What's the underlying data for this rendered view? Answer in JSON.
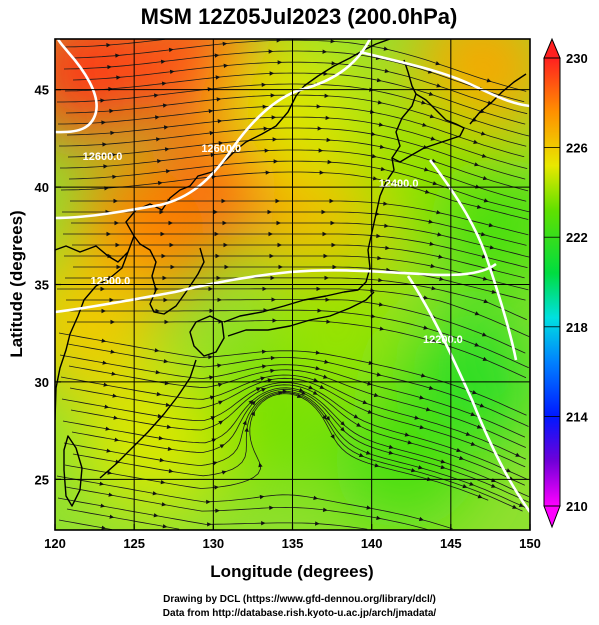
{
  "title": "MSM 12Z05Jul2023 (200.0hPa)",
  "chart_data": {
    "type": "heatmap",
    "title": "MSM 12Z05Jul2023 (200.0hPa)",
    "xlabel": "Longitude (degrees)",
    "ylabel": "Latitude  (degrees)",
    "xlim": [
      120,
      150
    ],
    "ylim": [
      22.4,
      47.6
    ],
    "x_ticks": [
      120,
      125,
      130,
      135,
      140,
      145,
      150
    ],
    "y_ticks": [
      25,
      30,
      35,
      40,
      45
    ],
    "grid": true,
    "shaded_variable_range": [
      210,
      230
    ],
    "colorbar_ticks": [
      210,
      214,
      218,
      222,
      226,
      230
    ],
    "colorbar_position": "right",
    "overlays": [
      "streamlines",
      "height contours",
      "coastlines"
    ],
    "contour_labels": [
      {
        "text": "12600.0",
        "lon": 123.0,
        "lat": 41.4
      },
      {
        "text": "12600.0",
        "lon": 130.5,
        "lat": 41.8
      },
      {
        "text": "12400.0",
        "lon": 141.7,
        "lat": 40.0
      },
      {
        "text": "12500.0",
        "lon": 123.5,
        "lat": 35.0
      },
      {
        "text": "12200.0",
        "lon": 144.5,
        "lat": 32.0
      }
    ],
    "temperature_regions": [
      {
        "lon": 122,
        "lat": 46,
        "value": 229.5
      },
      {
        "lon": 129,
        "lat": 46.5,
        "value": 229.0
      },
      {
        "lon": 132,
        "lat": 41,
        "value": 229.5
      },
      {
        "lon": 126,
        "lat": 38,
        "value": 228.0
      },
      {
        "lon": 137,
        "lat": 38,
        "value": 226.5
      },
      {
        "lon": 135,
        "lat": 44,
        "value": 225.0
      },
      {
        "lon": 147,
        "lat": 46,
        "value": 227.0
      },
      {
        "lon": 143,
        "lat": 41,
        "value": 224.0
      },
      {
        "lon": 148,
        "lat": 38,
        "value": 222.5
      },
      {
        "lon": 146,
        "lat": 30,
        "value": 221.5
      },
      {
        "lon": 142,
        "lat": 26,
        "value": 222.5
      },
      {
        "lon": 133,
        "lat": 28,
        "value": 223.5
      },
      {
        "lon": 126,
        "lat": 27,
        "value": 225.0
      },
      {
        "lon": 122,
        "lat": 33,
        "value": 226.0
      },
      {
        "lon": 138,
        "lat": 33,
        "value": 224.0
      }
    ]
  },
  "credits": {
    "line1": "Drawing by DCL (https://www.gfd-dennou.org/library/dcl/)",
    "line2": "Data from http://database.rish.kyoto-u.ac.jp/arch/jmadata/"
  }
}
